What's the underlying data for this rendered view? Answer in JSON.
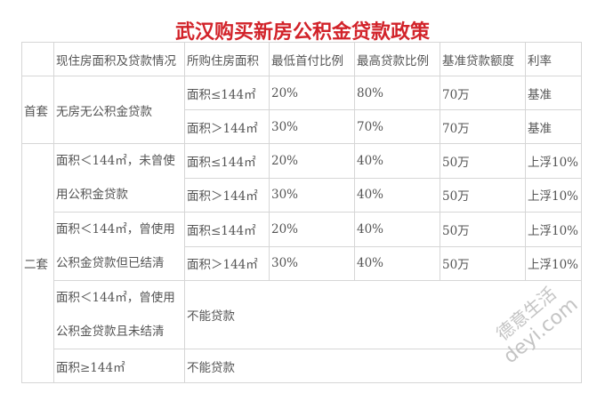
{
  "title": "武汉购买新房公积金贷款政策",
  "header": [
    "",
    "现住房面积及贷款情况",
    "所购住房面积",
    "最低首付比例",
    "最高贷款比例",
    "基准贷款额度",
    "利率"
  ],
  "groups": {
    "first": "首套",
    "second": "二套"
  },
  "rows": {
    "r1": {
      "situation": "无房无公积金贷款",
      "area": "面积≤144㎡",
      "down": "20%",
      "loan": "80%",
      "amount": "70万",
      "rate": "基准"
    },
    "r2": {
      "area": "面积＞144㎡",
      "down": "30%",
      "loan": "70%",
      "amount": "70万",
      "rate": "基准"
    },
    "r3": {
      "situation": "面积＜144㎡，未曾使用公积金贷款",
      "area": "面积≤144㎡",
      "down": "20%",
      "loan": "40%",
      "amount": "50万",
      "rate": "上浮10%"
    },
    "r4": {
      "area": "面积＞144㎡",
      "down": "30%",
      "loan": "40%",
      "amount": "50万",
      "rate": "上浮10%"
    },
    "r5": {
      "situation": "面积＜144㎡，曾使用公积金贷款但已结清",
      "area": "面积≤144㎡",
      "down": "20%",
      "loan": "40%",
      "amount": "50万",
      "rate": "上浮10%"
    },
    "r6": {
      "area": "面积＞144㎡",
      "down": "30%",
      "loan": "40%",
      "amount": "50万",
      "rate": "上浮10%"
    },
    "r7": {
      "situation": "面积＜144㎡，曾使用公积金贷款且未结清",
      "result": "不能贷款"
    },
    "r8": {
      "situation": "面积≥144㎡",
      "result": "不能贷款"
    }
  },
  "watermark": {
    "line1": "德意生活",
    "line2": "deyi.com"
  },
  "colors": {
    "title": "#d2232a",
    "border": "#d6d6d6",
    "text": "#555555"
  }
}
